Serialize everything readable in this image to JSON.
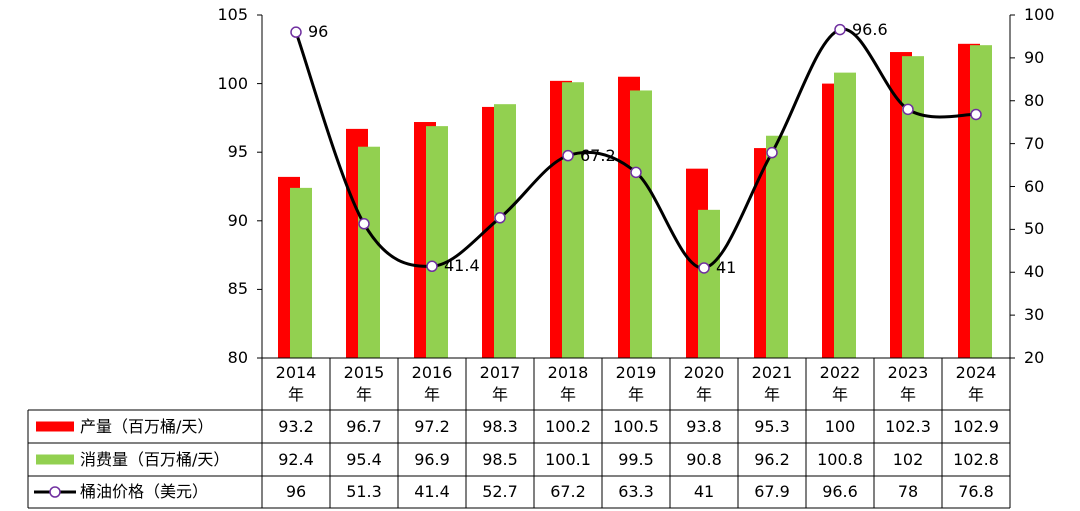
{
  "chart_data": {
    "type": "bar-line",
    "categories": [
      "2014年",
      "2015年",
      "2016年",
      "2017年",
      "2018年",
      "2019年",
      "2020年",
      "2021年",
      "2022年",
      "2023年",
      "2024年"
    ],
    "series": [
      {
        "name": "产量（百万桶/天）",
        "color": "#ff0000",
        "type": "bar",
        "values": [
          93.2,
          96.7,
          97.2,
          98.3,
          100.2,
          100.5,
          93.8,
          95.3,
          100,
          102.3,
          102.9
        ]
      },
      {
        "name": "消费量（百万桶/天）",
        "color": "#92d050",
        "type": "bar",
        "values": [
          92.4,
          95.4,
          96.9,
          98.5,
          100.1,
          99.5,
          90.8,
          96.2,
          100.8,
          102,
          102.8
        ]
      },
      {
        "name": "桶油价格（美元）",
        "color": "#000000",
        "marker_color": "#7030a0",
        "type": "line",
        "axis": "y2",
        "smooth": true,
        "values": [
          96,
          51.3,
          41.4,
          52.7,
          67.2,
          63.3,
          41,
          67.9,
          96.6,
          78,
          76.8
        ],
        "value_labels": [
          96,
          null,
          41.4,
          null,
          67.2,
          null,
          41,
          null,
          96.6,
          null,
          null
        ]
      }
    ],
    "ylim": [
      80,
      105
    ],
    "yticks": [
      80,
      85,
      90,
      95,
      100,
      105
    ],
    "y2lim": [
      20,
      100
    ],
    "y2ticks": [
      20,
      30,
      40,
      50,
      60,
      70,
      80,
      90,
      100
    ],
    "data_table": true
  }
}
